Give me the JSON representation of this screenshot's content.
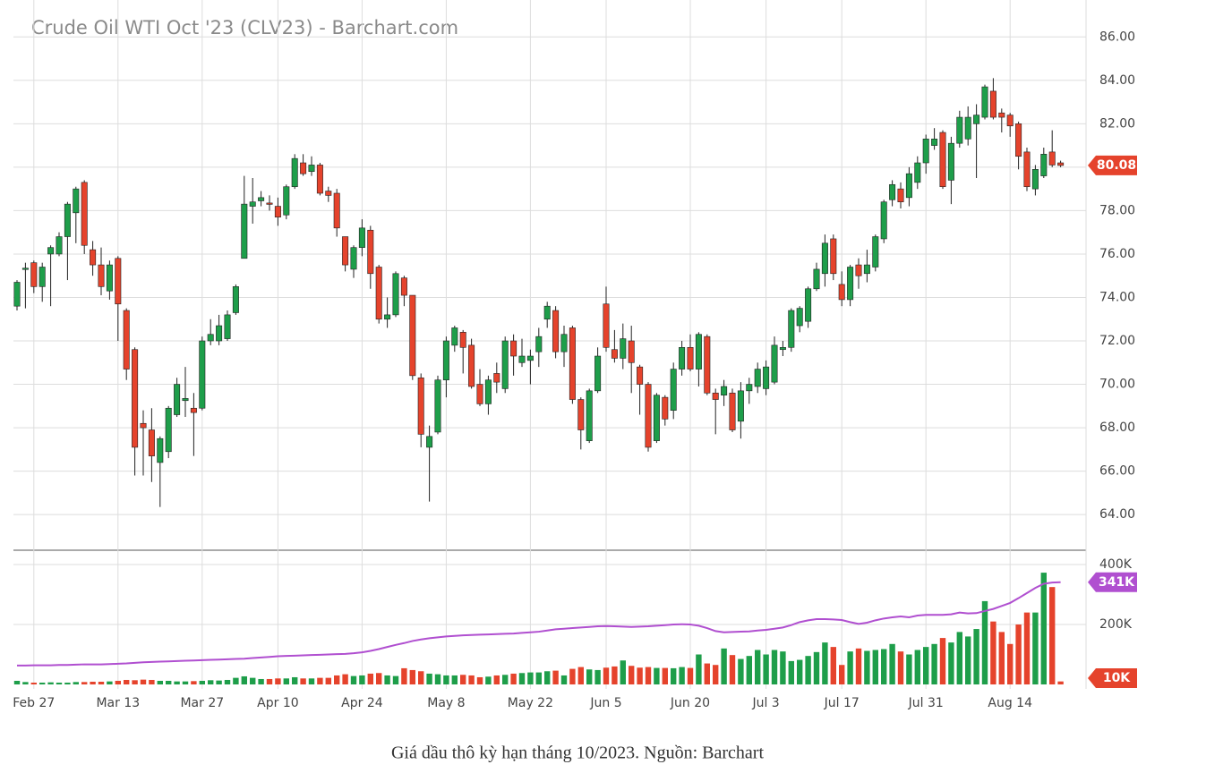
{
  "chart_data": {
    "type": "candlestick",
    "title": "Crude Oil WTI Oct '23 (CLV23) - Barchart.com",
    "up_color": "#1e9e4a",
    "down_color": "#e5432c",
    "ma_color": "#b04fd0",
    "grid": true,
    "ylim": [
      62.4,
      87.7
    ],
    "yticks": [
      {
        "value": 64,
        "label": "64.00"
      },
      {
        "value": 66,
        "label": "66.00"
      },
      {
        "value": 68,
        "label": "68.00"
      },
      {
        "value": 70,
        "label": "70.00"
      },
      {
        "value": 72,
        "label": "72.00"
      },
      {
        "value": 74,
        "label": "74.00"
      },
      {
        "value": 76,
        "label": "76.00"
      },
      {
        "value": 78,
        "label": "78.00"
      },
      {
        "value": 80,
        "label": "80.00"
      },
      {
        "value": 82,
        "label": "82.00"
      },
      {
        "value": 84,
        "label": "84.00"
      },
      {
        "value": 86,
        "label": "86.00"
      }
    ],
    "xticks": [
      {
        "value": 2,
        "label": "Feb 27"
      },
      {
        "value": 12,
        "label": "Mar 13"
      },
      {
        "value": 22,
        "label": "Mar 27"
      },
      {
        "value": 31,
        "label": "Apr 10"
      },
      {
        "value": 41,
        "label": "Apr 24"
      },
      {
        "value": 51,
        "label": "May 8"
      },
      {
        "value": 61,
        "label": "May 22"
      },
      {
        "value": 70,
        "label": "Jun 5"
      },
      {
        "value": 80,
        "label": "Jun 20"
      },
      {
        "value": 89,
        "label": "Jul 3"
      },
      {
        "value": 98,
        "label": "Jul 17"
      },
      {
        "value": 108,
        "label": "Jul 31"
      },
      {
        "value": 118,
        "label": "Aug 14"
      }
    ],
    "open": [
      73.6,
      75.3,
      75.6,
      74.5,
      76.0,
      76.0,
      76.8,
      77.9,
      79.3,
      76.2,
      75.5,
      74.3,
      75.8,
      73.4,
      71.6,
      68.2,
      67.9,
      66.4,
      66.9,
      68.6,
      69.25,
      68.9,
      68.9,
      72.0,
      72.0,
      72.1,
      73.3,
      75.8,
      78.2,
      78.45,
      78.35,
      78.2,
      77.8,
      79.1,
      80.2,
      79.8,
      80.1,
      78.9,
      78.8,
      76.8,
      75.3,
      76.3,
      77.1,
      75.4,
      73.0,
      73.2,
      74.9,
      74.1,
      70.3,
      67.1,
      67.8,
      70.2,
      71.8,
      72.4,
      71.8,
      70.0,
      69.1,
      70.5,
      69.8,
      72.0,
      71.0,
      71.1,
      71.5,
      73.0,
      73.4,
      71.5,
      72.6,
      69.3,
      67.4,
      69.7,
      73.7,
      71.6,
      71.2,
      72.0,
      70.8,
      70.0,
      67.4,
      69.4,
      68.8,
      70.7,
      71.7,
      70.7,
      72.2,
      69.6,
      69.5,
      69.6,
      68.3,
      69.7,
      69.9,
      69.8,
      70.1,
      71.6,
      71.7,
      72.7,
      72.9,
      74.4,
      75.1,
      76.7,
      74.6,
      73.9,
      75.5,
      75.1,
      75.4,
      76.7,
      78.5,
      79.0,
      78.6,
      79.3,
      80.2,
      81.0,
      81.6,
      79.4,
      81.1,
      81.3,
      82.0,
      82.3,
      83.5,
      82.5,
      82.4,
      82.0,
      80.7,
      79.0,
      79.6,
      80.7,
      80.2
    ],
    "high": [
      74.8,
      75.6,
      75.7,
      75.6,
      76.4,
      77.0,
      78.4,
      79.1,
      79.4,
      76.6,
      76.3,
      75.7,
      75.9,
      73.5,
      71.7,
      68.8,
      68.9,
      67.6,
      69.0,
      70.3,
      70.8,
      69.6,
      72.2,
      73.0,
      73.2,
      73.4,
      74.6,
      79.6,
      79.5,
      78.9,
      78.7,
      78.6,
      79.2,
      80.6,
      80.6,
      80.5,
      80.2,
      79.1,
      79.0,
      76.8,
      76.4,
      77.6,
      77.3,
      75.5,
      74.0,
      75.2,
      75.0,
      74.1,
      70.5,
      68.1,
      70.4,
      72.2,
      72.7,
      72.5,
      72.1,
      70.7,
      70.4,
      71.0,
      72.2,
      72.3,
      72.1,
      71.6,
      72.6,
      73.8,
      73.6,
      72.7,
      72.7,
      69.4,
      69.8,
      71.7,
      74.5,
      72.5,
      72.8,
      72.7,
      70.9,
      70.1,
      69.6,
      69.5,
      71.0,
      72.0,
      72.3,
      72.4,
      72.3,
      69.8,
      70.2,
      69.8,
      70.1,
      70.3,
      71.0,
      71.1,
      72.2,
      72.0,
      73.5,
      73.6,
      74.5,
      75.6,
      76.9,
      76.9,
      75.2,
      75.5,
      75.8,
      76.2,
      76.9,
      78.5,
      79.4,
      79.3,
      80.0,
      80.5,
      81.5,
      81.8,
      81.7,
      81.4,
      82.6,
      82.8,
      82.9,
      83.8,
      84.1,
      82.7,
      82.5,
      82.1,
      80.9,
      80.1,
      80.9,
      81.7,
      80.3
    ],
    "low": [
      73.4,
      73.5,
      74.2,
      73.8,
      73.6,
      75.9,
      74.8,
      76.5,
      76.0,
      75.0,
      74.1,
      73.9,
      72.0,
      70.2,
      65.8,
      65.8,
      65.5,
      64.35,
      66.6,
      68.5,
      68.5,
      66.7,
      68.8,
      71.8,
      71.8,
      72.0,
      73.2,
      75.8,
      77.4,
      78.2,
      78.0,
      77.3,
      77.6,
      79.0,
      79.6,
      79.6,
      78.7,
      78.4,
      76.8,
      75.2,
      74.9,
      75.9,
      74.4,
      72.8,
      72.6,
      73.1,
      73.6,
      70.2,
      67.1,
      64.6,
      67.7,
      69.4,
      71.5,
      70.5,
      69.8,
      69.0,
      68.6,
      69.6,
      69.6,
      70.4,
      70.8,
      70.0,
      70.8,
      72.6,
      71.2,
      70.8,
      69.1,
      67.0,
      67.3,
      69.6,
      71.5,
      71.0,
      70.7,
      69.6,
      68.6,
      66.9,
      67.3,
      68.1,
      68.4,
      70.4,
      70.6,
      69.9,
      69.5,
      67.7,
      69.0,
      67.8,
      67.5,
      69.1,
      69.6,
      69.5,
      70.0,
      71.3,
      71.5,
      72.4,
      72.6,
      74.3,
      74.5,
      74.8,
      73.6,
      73.6,
      74.4,
      74.7,
      75.2,
      76.5,
      78.2,
      78.1,
      78.2,
      79.0,
      79.7,
      80.8,
      79.0,
      78.3,
      80.9,
      81.0,
      79.5,
      82.2,
      82.2,
      81.6,
      81.4,
      79.9,
      78.9,
      78.7,
      79.5,
      80.0,
      80.0
    ],
    "close": [
      74.7,
      75.35,
      74.5,
      75.4,
      76.3,
      76.8,
      78.3,
      79.0,
      76.4,
      75.5,
      74.5,
      75.5,
      73.7,
      70.7,
      67.1,
      68.0,
      66.7,
      67.5,
      68.9,
      70.0,
      69.35,
      68.7,
      72.0,
      72.3,
      72.7,
      73.2,
      74.5,
      78.3,
      78.4,
      78.6,
      78.3,
      77.7,
      79.1,
      80.4,
      79.7,
      80.1,
      78.8,
      78.7,
      77.2,
      75.5,
      76.3,
      77.2,
      75.1,
      73.0,
      73.2,
      75.1,
      74.1,
      70.4,
      67.7,
      67.6,
      70.2,
      72.0,
      72.6,
      71.7,
      69.9,
      69.1,
      70.2,
      70.1,
      72.0,
      71.3,
      71.3,
      71.3,
      72.2,
      73.6,
      71.5,
      72.3,
      69.3,
      67.9,
      69.7,
      71.3,
      71.7,
      71.2,
      72.1,
      71.0,
      70.0,
      67.1,
      69.5,
      68.4,
      70.7,
      71.7,
      70.7,
      72.3,
      69.6,
      69.3,
      69.9,
      67.9,
      69.7,
      70.0,
      70.7,
      70.8,
      71.8,
      71.7,
      73.4,
      73.5,
      74.4,
      75.3,
      76.5,
      75.1,
      73.9,
      75.4,
      75.0,
      75.5,
      76.8,
      78.4,
      79.2,
      78.4,
      79.7,
      80.2,
      81.3,
      81.3,
      79.1,
      81.1,
      82.3,
      82.3,
      82.4,
      83.7,
      82.3,
      82.3,
      81.9,
      80.5,
      79.1,
      79.9,
      80.6,
      80.1,
      80.08
    ],
    "last_price": {
      "value": 80.08,
      "label": "80.08"
    },
    "volume_ylim": [
      0,
      430000
    ],
    "volume_yticks": [
      {
        "value": 200000,
        "label": "200K"
      },
      {
        "value": 400000,
        "label": "400K"
      }
    ],
    "volume": [
      12000,
      8000,
      6000,
      6000,
      7000,
      6000,
      6000,
      8000,
      8000,
      9000,
      9000,
      10000,
      12000,
      15000,
      14000,
      16000,
      15000,
      12000,
      12000,
      10000,
      10000,
      11000,
      12000,
      14000,
      13000,
      15000,
      22000,
      27000,
      22000,
      18000,
      18000,
      20000,
      20000,
      24000,
      20000,
      20000,
      22000,
      22000,
      30000,
      34000,
      28000,
      30000,
      36000,
      38000,
      30000,
      28000,
      54000,
      48000,
      44000,
      36000,
      34000,
      30000,
      30000,
      32000,
      30000,
      24000,
      26000,
      30000,
      32000,
      36000,
      38000,
      40000,
      40000,
      44000,
      46000,
      30000,
      52000,
      58000,
      50000,
      48000,
      56000,
      60000,
      80000,
      62000,
      56000,
      58000,
      55000,
      55000,
      54000,
      58000,
      55000,
      100000,
      70000,
      65000,
      120000,
      98000,
      85000,
      95000,
      115000,
      100000,
      115000,
      110000,
      78000,
      82000,
      95000,
      108000,
      140000,
      125000,
      65000,
      110000,
      120000,
      112000,
      115000,
      118000,
      135000,
      110000,
      100000,
      115000,
      125000,
      135000,
      155000,
      140000,
      175000,
      160000,
      185000,
      278000,
      210000,
      175000,
      135000,
      200000,
      240000,
      240000,
      373000,
      325000,
      10000
    ],
    "volume_ma": [
      63000,
      63000,
      64000,
      64000,
      64000,
      65000,
      65000,
      66000,
      67000,
      67000,
      67000,
      68000,
      69000,
      70000,
      72000,
      74000,
      75000,
      76000,
      77000,
      78000,
      79000,
      80000,
      81000,
      82000,
      83000,
      84000,
      85000,
      86000,
      88000,
      90000,
      92000,
      94000,
      95000,
      96000,
      97000,
      98000,
      99000,
      100000,
      101000,
      102000,
      104000,
      107000,
      112000,
      118000,
      125000,
      132000,
      138000,
      145000,
      150000,
      154000,
      157000,
      160000,
      162000,
      164000,
      165000,
      166000,
      167000,
      168000,
      169000,
      170000,
      172000,
      174000,
      176000,
      180000,
      184000,
      186000,
      188000,
      190000,
      192000,
      194000,
      195000,
      194000,
      193000,
      192000,
      193000,
      194000,
      196000,
      198000,
      200000,
      201000,
      200000,
      196000,
      188000,
      178000,
      174000,
      175000,
      176000,
      177000,
      180000,
      182000,
      186000,
      190000,
      198000,
      208000,
      214000,
      218000,
      218000,
      217000,
      215000,
      208000,
      202000,
      206000,
      214000,
      220000,
      224000,
      227000,
      224000,
      230000,
      232000,
      232000,
      232000,
      234000,
      240000,
      237000,
      238000,
      245000,
      252000,
      262000,
      272000,
      288000,
      305000,
      322000,
      336000,
      340000,
      341000
    ],
    "volume_ma_last": {
      "value": 341000,
      "label": "341K"
    },
    "volume_last": {
      "value": 10000,
      "label": "10K"
    },
    "caption": "Giá dầu thô kỳ hạn tháng 10/2023. Nguồn: Barchart"
  }
}
